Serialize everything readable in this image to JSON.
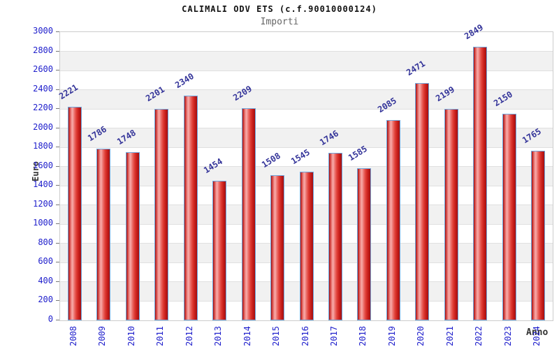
{
  "chart_data": {
    "type": "bar",
    "title": "CALIMALI ODV ETS (c.f.90010000124)",
    "subtitle": "Importi",
    "xlabel": "Anno",
    "ylabel": "Euro",
    "categories": [
      "2008",
      "2009",
      "2010",
      "2011",
      "2012",
      "2013",
      "2014",
      "2015",
      "2016",
      "2017",
      "2018",
      "2019",
      "2020",
      "2021",
      "2022",
      "2023",
      "2024"
    ],
    "values": [
      2221,
      1786,
      1748,
      2201,
      2340,
      1454,
      2209,
      1508,
      1545,
      1746,
      1585,
      2085,
      2471,
      2199,
      2849,
      2150,
      1765
    ],
    "ylim": [
      0,
      3000
    ],
    "ytick_step": 200,
    "legend": null,
    "grid": "horizontal-bands-alternating",
    "colors": {
      "bar_fill_main": "#dd3a32",
      "bar_fill_highlight": "#f7aaa8",
      "bar_fill_dark": "#9e0e0e",
      "bar_border": "#6fa6dd",
      "tick_label": "#2020cc",
      "value_label": "#333399",
      "band": "#f1f1f1",
      "gridline": "#e0e0e0",
      "plot_border": "#cccccc",
      "title": "#111111",
      "subtitle": "#666666",
      "axis_title": "#333333",
      "tick_mark": "#777777",
      "background": "#ffffff"
    }
  }
}
